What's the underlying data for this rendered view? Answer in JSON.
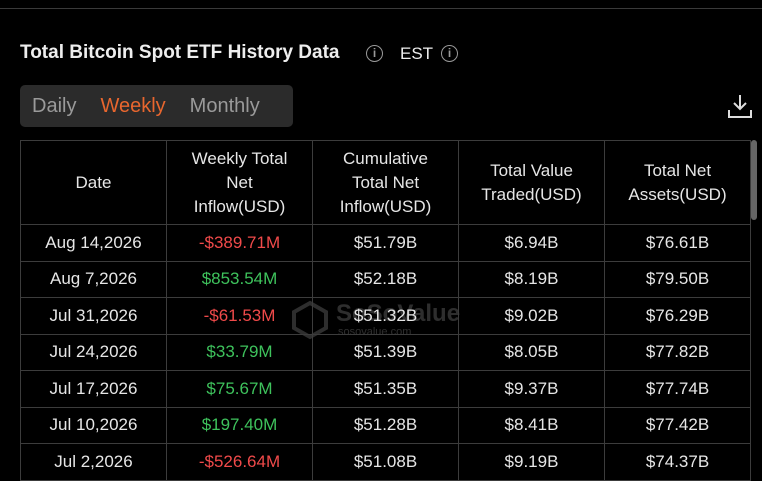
{
  "header": {
    "title": "Total Bitcoin Spot ETF History Data",
    "timezone": "EST"
  },
  "tabs": [
    "Daily",
    "Weekly",
    "Monthly"
  ],
  "active_tab": 1,
  "watermark": {
    "brand": "SoSoValue",
    "site": "sosovalue.com"
  },
  "table": {
    "columns": [
      "Date",
      "Weekly Total Net Inflow(USD)",
      "Cumulative Total Net Inflow(USD)",
      "Total Value Traded(USD)",
      "Total Net Assets(USD)"
    ],
    "rows": [
      [
        "Aug 14,2026",
        "-$389.71M",
        "$51.79B",
        "$6.94B",
        "$76.61B"
      ],
      [
        "Aug 7,2026",
        "$853.54M",
        "$52.18B",
        "$8.19B",
        "$79.50B"
      ],
      [
        "Jul 31,2026",
        "-$61.53M",
        "$51.32B",
        "$9.02B",
        "$76.29B"
      ],
      [
        "Jul 24,2026",
        "$33.79M",
        "$51.39B",
        "$8.05B",
        "$77.82B"
      ],
      [
        "Jul 17,2026",
        "$75.67M",
        "$51.35B",
        "$9.37B",
        "$77.74B"
      ],
      [
        "Jul 10,2026",
        "$197.40M",
        "$51.28B",
        "$8.41B",
        "$77.42B"
      ],
      [
        "Jul 2,2026",
        "-$526.64M",
        "$51.08B",
        "$9.19B",
        "$74.37B"
      ]
    ]
  }
}
